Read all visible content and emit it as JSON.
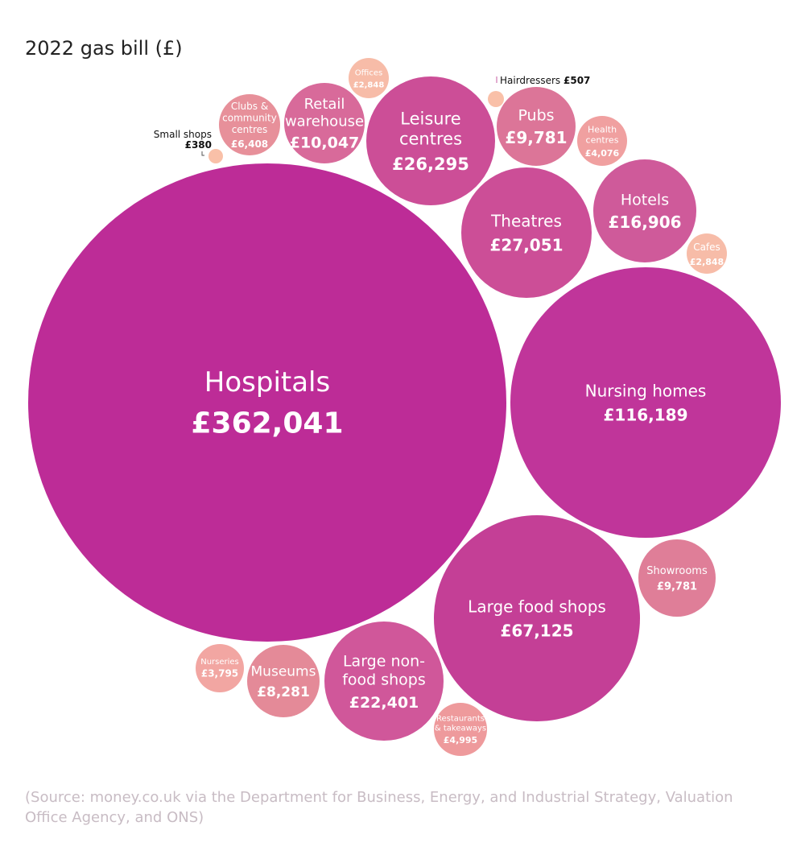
{
  "chart_data": {
    "type": "bubble",
    "title": "2022 gas bill (£)",
    "unit": "£",
    "source": "(Source: money.co.uk via the Department for Business, Energy, and Industrial Strategy, Valuation Office Agency, and ONS)",
    "bubbles": [
      {
        "name": "Hospitals",
        "value": 362041,
        "color": "#bd2c97"
      },
      {
        "name": "Nursing homes",
        "value": 116189,
        "color": "#c0359a"
      },
      {
        "name": "Large food shops",
        "value": 67125,
        "color": "#c43f96"
      },
      {
        "name": "Theatres",
        "value": 27051,
        "color": "#cc4e97"
      },
      {
        "name": "Leisure centres",
        "value": 26295,
        "color": "#cc4e97"
      },
      {
        "name": "Large non-food shops",
        "value": 22401,
        "color": "#d0579a"
      },
      {
        "name": "Hotels",
        "value": 16906,
        "color": "#cf5a9a"
      },
      {
        "name": "Retail warehouse",
        "value": 10047,
        "color": "#d86a9a"
      },
      {
        "name": "Pubs",
        "value": 9781,
        "color": "#dc7598"
      },
      {
        "name": "Showrooms",
        "value": 9781,
        "color": "#df7e98"
      },
      {
        "name": "Museums",
        "value": 8281,
        "color": "#e48a98"
      },
      {
        "name": "Clubs & community centres",
        "value": 6408,
        "color": "#e7909a"
      },
      {
        "name": "Restaurants & takeaways",
        "value": 4995,
        "color": "#ee9a9c"
      },
      {
        "name": "Health centres",
        "value": 4076,
        "color": "#f0a0a0"
      },
      {
        "name": "Nurseries",
        "value": 3795,
        "color": "#f2a6a2"
      },
      {
        "name": "Offices",
        "value": 2848,
        "color": "#f7bca8"
      },
      {
        "name": "Cafes",
        "value": 2848,
        "color": "#f7bca8"
      },
      {
        "name": "Hairdressers",
        "value": 507,
        "color": "#f9c0a8"
      },
      {
        "name": "Small shops",
        "value": 380,
        "color": "#f9c0a8"
      }
    ]
  }
}
